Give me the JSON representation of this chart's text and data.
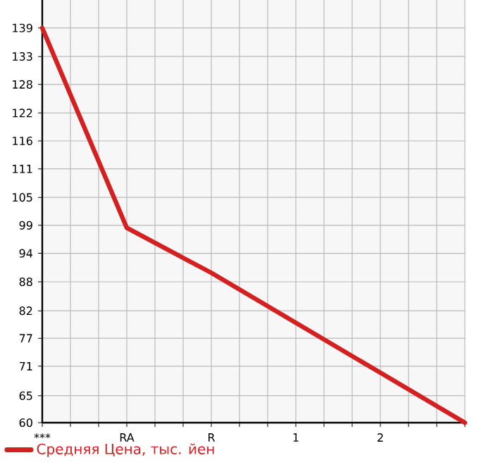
{
  "chart_data": {
    "type": "line",
    "categories": [
      "***",
      "RA",
      "R",
      "1",
      "2",
      null
    ],
    "series": [
      {
        "name": "Средняя Цена, тыс. йен",
        "color": "#d42020",
        "values": [
          139,
          99,
          90,
          80,
          70,
          60
        ]
      }
    ],
    "ylim": [
      60,
      144.6
    ],
    "yticks": [
      {
        "value": 60,
        "label": "60"
      },
      {
        "value": 65.4,
        "label": "65"
      },
      {
        "value": 71.3,
        "label": "71"
      },
      {
        "value": 76.9,
        "label": "77"
      },
      {
        "value": 82.4,
        "label": "82"
      },
      {
        "value": 88.2,
        "label": "88"
      },
      {
        "value": 93.9,
        "label": "94"
      },
      {
        "value": 99.5,
        "label": "99"
      },
      {
        "value": 105.1,
        "label": "105"
      },
      {
        "value": 110.8,
        "label": "111"
      },
      {
        "value": 116.4,
        "label": "116"
      },
      {
        "value": 122.0,
        "label": "122"
      },
      {
        "value": 127.7,
        "label": "128"
      },
      {
        "value": 133.3,
        "label": "133"
      },
      {
        "value": 139,
        "label": "139"
      }
    ],
    "grid": true,
    "legend": "bottom left",
    "marker": "none",
    "line_style": "solid"
  }
}
